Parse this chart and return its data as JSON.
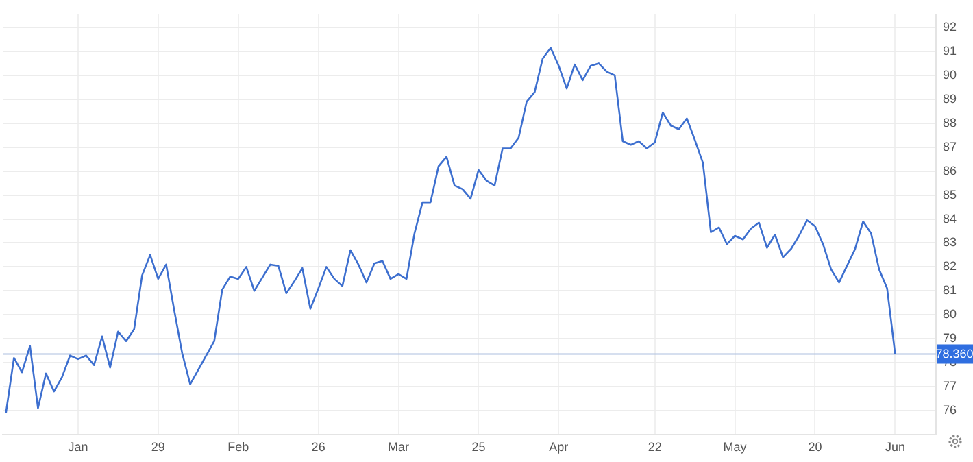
{
  "chart_data": {
    "type": "line",
    "categories": [
      null,
      null,
      null,
      null,
      null,
      null,
      null,
      null,
      null,
      "Jan",
      null,
      null,
      null,
      null,
      null,
      null,
      null,
      null,
      null,
      "29",
      null,
      null,
      null,
      null,
      null,
      null,
      null,
      null,
      null,
      "Feb",
      null,
      null,
      null,
      null,
      null,
      null,
      null,
      null,
      null,
      "26",
      null,
      null,
      null,
      null,
      null,
      null,
      null,
      null,
      null,
      "Mar",
      null,
      null,
      null,
      null,
      null,
      null,
      null,
      null,
      null,
      "25",
      null,
      null,
      null,
      null,
      null,
      null,
      null,
      null,
      null,
      "Apr",
      null,
      null,
      null,
      null,
      null,
      null,
      null,
      null,
      null,
      null,
      null,
      "22",
      null,
      null,
      null,
      null,
      null,
      null,
      null,
      null,
      null,
      "May",
      null,
      null,
      null,
      null,
      null,
      null,
      null,
      null,
      null,
      "20",
      null,
      null,
      null,
      null,
      null,
      null,
      null,
      null,
      null,
      "Jun"
    ],
    "series": [
      {
        "color": "#3d6fcf",
        "values": [
          75.9,
          78.2,
          77.6,
          78.7,
          76.1,
          77.55,
          76.8,
          77.4,
          78.3,
          78.15,
          78.3,
          77.9,
          79.1,
          77.8,
          79.3,
          78.9,
          79.4,
          81.65,
          82.5,
          81.5,
          82.1,
          80.2,
          78.4,
          77.1,
          77.7,
          78.3,
          78.9,
          81.05,
          81.6,
          81.5,
          82.0,
          81.0,
          81.55,
          82.1,
          82.05,
          80.9,
          81.4,
          81.95,
          80.25,
          81.1,
          82.0,
          81.5,
          81.2,
          82.7,
          82.1,
          81.35,
          82.15,
          82.25,
          81.5,
          81.7,
          81.5,
          83.4,
          84.7,
          84.7,
          86.2,
          86.6,
          85.4,
          85.25,
          84.85,
          86.05,
          85.6,
          85.4,
          86.95,
          86.95,
          87.4,
          88.9,
          89.3,
          90.7,
          91.15,
          90.4,
          89.45,
          90.45,
          89.8,
          90.4,
          90.5,
          90.15,
          90.0,
          87.25,
          87.1,
          87.25,
          86.95,
          87.2,
          88.45,
          87.9,
          87.75,
          88.2,
          87.3,
          86.35,
          83.45,
          83.65,
          82.95,
          83.3,
          83.15,
          83.6,
          83.85,
          82.8,
          83.35,
          82.4,
          82.75,
          83.3,
          83.95,
          83.7,
          82.95,
          81.9,
          81.35,
          82.05,
          82.75,
          83.9,
          83.4,
          81.9,
          81.1,
          78.36
        ]
      }
    ],
    "ylim": [
      75,
      92.55
    ],
    "yticks": [
      76,
      77,
      78,
      79,
      80,
      81,
      82,
      83,
      84,
      85,
      86,
      87,
      88,
      89,
      90,
      91,
      92
    ],
    "ref_lines": [
      {
        "axis": "y",
        "value": 78.36,
        "label": "78.360",
        "color": "#aebfe0"
      }
    ],
    "grid": true,
    "legend": false,
    "marker": "none",
    "line_style": "solid"
  }
}
